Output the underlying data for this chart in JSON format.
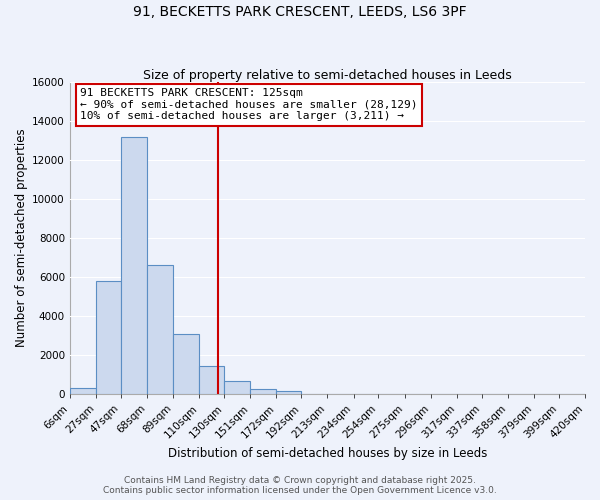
{
  "title_line1": "91, BECKETTS PARK CRESCENT, LEEDS, LS6 3PF",
  "title_line2": "Size of property relative to semi-detached houses in Leeds",
  "xlabel": "Distribution of semi-detached houses by size in Leeds",
  "ylabel": "Number of semi-detached properties",
  "bin_labels": [
    "6sqm",
    "27sqm",
    "47sqm",
    "68sqm",
    "89sqm",
    "110sqm",
    "130sqm",
    "151sqm",
    "172sqm",
    "192sqm",
    "213sqm",
    "234sqm",
    "254sqm",
    "275sqm",
    "296sqm",
    "317sqm",
    "337sqm",
    "358sqm",
    "379sqm",
    "399sqm",
    "420sqm"
  ],
  "bin_edges": [
    6,
    27,
    47,
    68,
    89,
    110,
    130,
    151,
    172,
    192,
    213,
    234,
    254,
    275,
    296,
    317,
    337,
    358,
    379,
    399,
    420
  ],
  "bar_heights": [
    300,
    5800,
    13200,
    6600,
    3100,
    1450,
    650,
    250,
    150,
    0,
    0,
    0,
    0,
    0,
    0,
    0,
    0,
    0,
    0,
    0
  ],
  "bar_color": "#ccd9ee",
  "bar_edge_color": "#5b8ec4",
  "vline_x": 125,
  "vline_color": "#cc0000",
  "ylim": [
    0,
    16000
  ],
  "yticks": [
    0,
    2000,
    4000,
    6000,
    8000,
    10000,
    12000,
    14000,
    16000
  ],
  "annotation_title": "91 BECKETTS PARK CRESCENT: 125sqm",
  "annotation_line1": "← 90% of semi-detached houses are smaller (28,129)",
  "annotation_line2": "10% of semi-detached houses are larger (3,211) →",
  "annotation_box_color": "#ffffff",
  "annotation_box_edge": "#cc0000",
  "footer_line1": "Contains HM Land Registry data © Crown copyright and database right 2025.",
  "footer_line2": "Contains public sector information licensed under the Open Government Licence v3.0.",
  "background_color": "#eef2fb",
  "grid_color": "#ffffff",
  "title_fontsize": 10,
  "subtitle_fontsize": 9,
  "axis_label_fontsize": 8.5,
  "tick_fontsize": 7.5,
  "annotation_fontsize": 8,
  "footer_fontsize": 6.5
}
